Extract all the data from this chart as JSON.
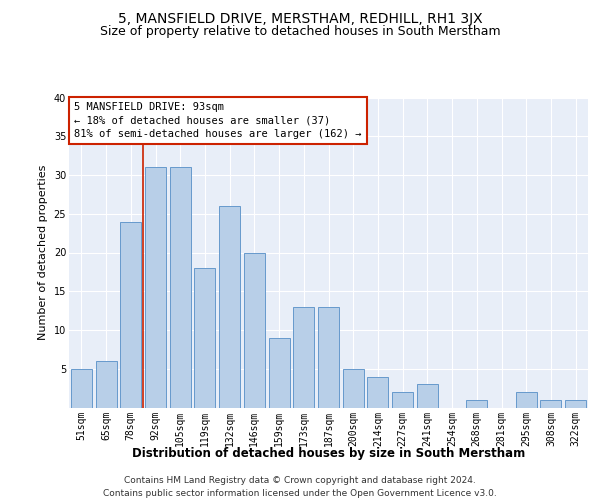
{
  "title": "5, MANSFIELD DRIVE, MERSTHAM, REDHILL, RH1 3JX",
  "subtitle": "Size of property relative to detached houses in South Merstham",
  "xlabel": "Distribution of detached houses by size in South Merstham",
  "ylabel": "Number of detached properties",
  "categories": [
    "51sqm",
    "65sqm",
    "78sqm",
    "92sqm",
    "105sqm",
    "119sqm",
    "132sqm",
    "146sqm",
    "159sqm",
    "173sqm",
    "187sqm",
    "200sqm",
    "214sqm",
    "227sqm",
    "241sqm",
    "254sqm",
    "268sqm",
    "281sqm",
    "295sqm",
    "308sqm",
    "322sqm"
  ],
  "values": [
    5,
    6,
    24,
    31,
    31,
    18,
    26,
    20,
    9,
    13,
    13,
    5,
    4,
    2,
    3,
    0,
    1,
    0,
    2,
    1,
    1
  ],
  "bar_color": "#b8cfe8",
  "bar_edge_color": "#6699cc",
  "annotation_lines": [
    "5 MANSFIELD DRIVE: 93sqm",
    "← 18% of detached houses are smaller (37)",
    "81% of semi-detached houses are larger (162) →"
  ],
  "annotation_box_edgecolor": "#cc2200",
  "annotation_box_facecolor": "#ffffff",
  "vline_x": 2.5,
  "vline_color": "#cc2200",
  "ylim": [
    0,
    40
  ],
  "yticks": [
    0,
    5,
    10,
    15,
    20,
    25,
    30,
    35,
    40
  ],
  "ax_background": "#e8eef8",
  "fig_background": "#ffffff",
  "footer_line1": "Contains HM Land Registry data © Crown copyright and database right 2024.",
  "footer_line2": "Contains public sector information licensed under the Open Government Licence v3.0.",
  "title_fontsize": 10,
  "subtitle_fontsize": 9,
  "xlabel_fontsize": 8.5,
  "ylabel_fontsize": 8,
  "tick_fontsize": 7,
  "annot_fontsize": 7.5,
  "footer_fontsize": 6.5
}
